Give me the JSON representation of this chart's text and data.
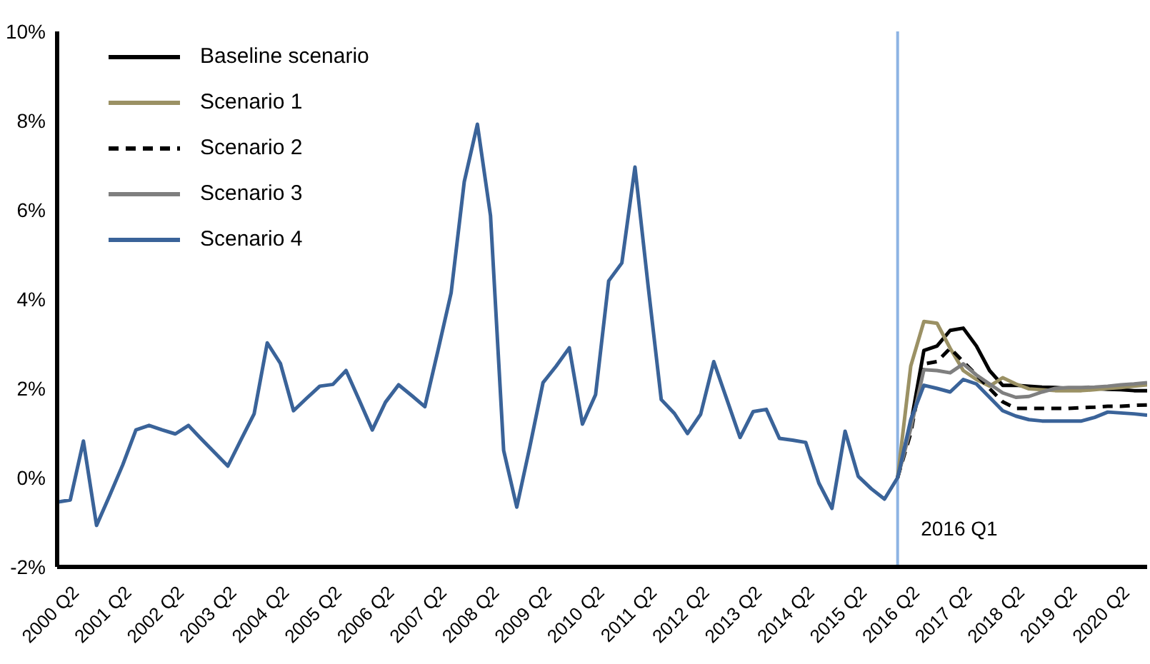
{
  "chart_data": {
    "type": "line",
    "x": [
      "2000-01",
      "2000-04",
      "2000-07",
      "2000-10",
      "2001-01",
      "2001-04",
      "2001-07",
      "2001-10",
      "2002-01",
      "2002-04",
      "2002-07",
      "2002-10",
      "2003-01",
      "2003-04",
      "2003-07",
      "2003-10",
      "2004-01",
      "2004-04",
      "2004-07",
      "2004-10",
      "2005-01",
      "2005-04",
      "2005-07",
      "2005-10",
      "2006-01",
      "2006-04",
      "2006-07",
      "2006-10",
      "2007-01",
      "2007-04",
      "2007-07",
      "2007-10",
      "2008-01",
      "2008-04",
      "2008-07",
      "2008-10",
      "2009-01",
      "2009-04",
      "2009-07",
      "2009-10",
      "2010-01",
      "2010-04",
      "2010-07",
      "2010-10",
      "2011-01",
      "2011-04",
      "2011-07",
      "2011-10",
      "2012-01",
      "2012-04",
      "2012-07",
      "2012-10",
      "2013-01",
      "2013-04",
      "2013-07",
      "2013-10",
      "2014-01",
      "2014-04",
      "2014-07",
      "2014-10",
      "2015-01",
      "2015-04",
      "2015-07",
      "2015-10",
      "2016-01",
      "2016-04",
      "2016-07",
      "2016-10",
      "2017-01",
      "2017-04",
      "2017-07",
      "2017-10",
      "2018-01",
      "2018-04",
      "2018-07",
      "2018-10",
      "2019-01",
      "2019-04",
      "2019-07",
      "2019-10",
      "2020-01",
      "2020-04",
      "2020-07",
      "2020-10"
    ],
    "series": [
      {
        "name": "Baseline scenario",
        "color": "#000000",
        "x": [
          "2016-01",
          "2016-04",
          "2016-07",
          "2016-10",
          "2017-01",
          "2017-04",
          "2017-07",
          "2017-10",
          "2018-01",
          "2018-04",
          "2018-07",
          "2018-10",
          "2019-01",
          "2019-04",
          "2019-07",
          "2019-10",
          "2020-01",
          "2020-04",
          "2020-07",
          "2020-10"
        ],
        "values": [
          0,
          1.2,
          2.85,
          2.95,
          3.3,
          3.35,
          2.95,
          2.4,
          2.07,
          2.07,
          2.05,
          2.03,
          2.02,
          2.0,
          2.0,
          2.0,
          1.98,
          1.97,
          1.95,
          1.95
        ]
      },
      {
        "name": "Scenario 1",
        "color": "#9b9164",
        "x": [
          "2016-01",
          "2016-04",
          "2016-07",
          "2016-10",
          "2017-01",
          "2017-04",
          "2017-07",
          "2017-10",
          "2018-01",
          "2018-04",
          "2018-07",
          "2018-10",
          "2019-01",
          "2019-04",
          "2019-07",
          "2019-10",
          "2020-01",
          "2020-04",
          "2020-07",
          "2020-10"
        ],
        "values": [
          0,
          2.5,
          3.5,
          3.46,
          2.9,
          2.4,
          2.2,
          2.05,
          2.24,
          2.1,
          1.99,
          1.97,
          1.95,
          1.95,
          1.95,
          1.97,
          2.0,
          2.02,
          2.05,
          2.08
        ]
      },
      {
        "name": "Scenario 2",
        "color": "#000000",
        "line_style": "dashed",
        "x": [
          "2016-01",
          "2016-04",
          "2016-07",
          "2016-10",
          "2017-01",
          "2017-04",
          "2017-07",
          "2017-10",
          "2018-01",
          "2018-04",
          "2018-07",
          "2018-10",
          "2019-01",
          "2019-04",
          "2019-07",
          "2019-10",
          "2020-01",
          "2020-04",
          "2020-07",
          "2020-10"
        ],
        "values": [
          0,
          1.0,
          2.55,
          2.6,
          2.9,
          2.6,
          2.3,
          2.0,
          1.7,
          1.55,
          1.55,
          1.55,
          1.55,
          1.55,
          1.57,
          1.58,
          1.6,
          1.6,
          1.62,
          1.63
        ]
      },
      {
        "name": "Scenario 3",
        "color": "#7f7f7f",
        "x": [
          "2016-01",
          "2016-04",
          "2016-07",
          "2016-10",
          "2017-01",
          "2017-04",
          "2017-07",
          "2017-10",
          "2018-01",
          "2018-04",
          "2018-07",
          "2018-10",
          "2019-01",
          "2019-04",
          "2019-07",
          "2019-10",
          "2020-01",
          "2020-04",
          "2020-07",
          "2020-10"
        ],
        "values": [
          0,
          1.1,
          2.42,
          2.4,
          2.35,
          2.55,
          2.3,
          2.1,
          1.9,
          1.8,
          1.82,
          1.92,
          2.0,
          2.02,
          2.02,
          2.03,
          2.05,
          2.08,
          2.1,
          2.13
        ]
      },
      {
        "name": "Scenario 4",
        "color": "#3a6399",
        "values": [
          -0.55,
          -0.5,
          0.82,
          -1.07,
          -0.4,
          0.29,
          1.07,
          1.17,
          1.07,
          0.98,
          1.17,
          0.86,
          0.56,
          0.26,
          0.85,
          1.43,
          3.02,
          2.56,
          1.5,
          1.78,
          2.05,
          2.09,
          2.4,
          1.74,
          1.07,
          1.69,
          2.08,
          1.84,
          1.59,
          2.85,
          4.14,
          6.63,
          7.92,
          5.87,
          0.61,
          -0.66,
          0.7,
          2.13,
          2.5,
          2.91,
          1.2,
          1.86,
          4.41,
          4.81,
          6.96,
          4.3,
          1.75,
          1.44,
          0.99,
          1.42,
          2.6,
          1.75,
          0.9,
          1.48,
          1.53,
          0.88,
          0.84,
          0.79,
          -0.12,
          -0.69,
          1.04,
          0.03,
          -0.25,
          -0.48,
          0,
          1.3,
          2.07,
          2.0,
          1.92,
          2.2,
          2.1,
          1.8,
          1.5,
          1.38,
          1.3,
          1.27,
          1.27,
          1.27,
          1.27,
          1.35,
          1.47,
          1.45,
          1.43,
          1.4
        ]
      }
    ],
    "xlim": [
      "2000-01",
      "2020-10"
    ],
    "xticks": [
      {
        "value": "2000-04",
        "label": "2000 Q2"
      },
      {
        "value": "2001-04",
        "label": "2001 Q2"
      },
      {
        "value": "2002-04",
        "label": "2002 Q2"
      },
      {
        "value": "2003-04",
        "label": "2003 Q2"
      },
      {
        "value": "2004-04",
        "label": "2004 Q2"
      },
      {
        "value": "2005-04",
        "label": "2005 Q2"
      },
      {
        "value": "2006-04",
        "label": "2006 Q2"
      },
      {
        "value": "2007-04",
        "label": "2007 Q2"
      },
      {
        "value": "2008-04",
        "label": "2008 Q2"
      },
      {
        "value": "2009-04",
        "label": "2009 Q2"
      },
      {
        "value": "2010-04",
        "label": "2010 Q2"
      },
      {
        "value": "2011-04",
        "label": "2011 Q2"
      },
      {
        "value": "2012-04",
        "label": "2012 Q2"
      },
      {
        "value": "2013-04",
        "label": "2013 Q2"
      },
      {
        "value": "2014-04",
        "label": "2014 Q2"
      },
      {
        "value": "2015-04",
        "label": "2015 Q2"
      },
      {
        "value": "2016-04",
        "label": "2016 Q2"
      },
      {
        "value": "2017-04",
        "label": "2017 Q2"
      },
      {
        "value": "2018-04",
        "label": "2018 Q2"
      },
      {
        "value": "2019-04",
        "label": "2019 Q2"
      },
      {
        "value": "2020-04",
        "label": "2020 Q2"
      }
    ],
    "ylim": [
      -2,
      10
    ],
    "yticks": [
      {
        "value": -2,
        "label": "-2%"
      },
      {
        "value": 0,
        "label": "0%"
      },
      {
        "value": 2,
        "label": "2%"
      },
      {
        "value": 4,
        "label": "4%"
      },
      {
        "value": 6,
        "label": "6%"
      },
      {
        "value": 8,
        "label": "8%"
      },
      {
        "value": 10,
        "label": "10%"
      }
    ],
    "ref_lines": [
      {
        "axis": "x",
        "value": "2016-01",
        "label": "2016 Q1",
        "color": "#8eb4e3"
      }
    ],
    "grid": false,
    "legend": "top left",
    "marker": "none"
  }
}
